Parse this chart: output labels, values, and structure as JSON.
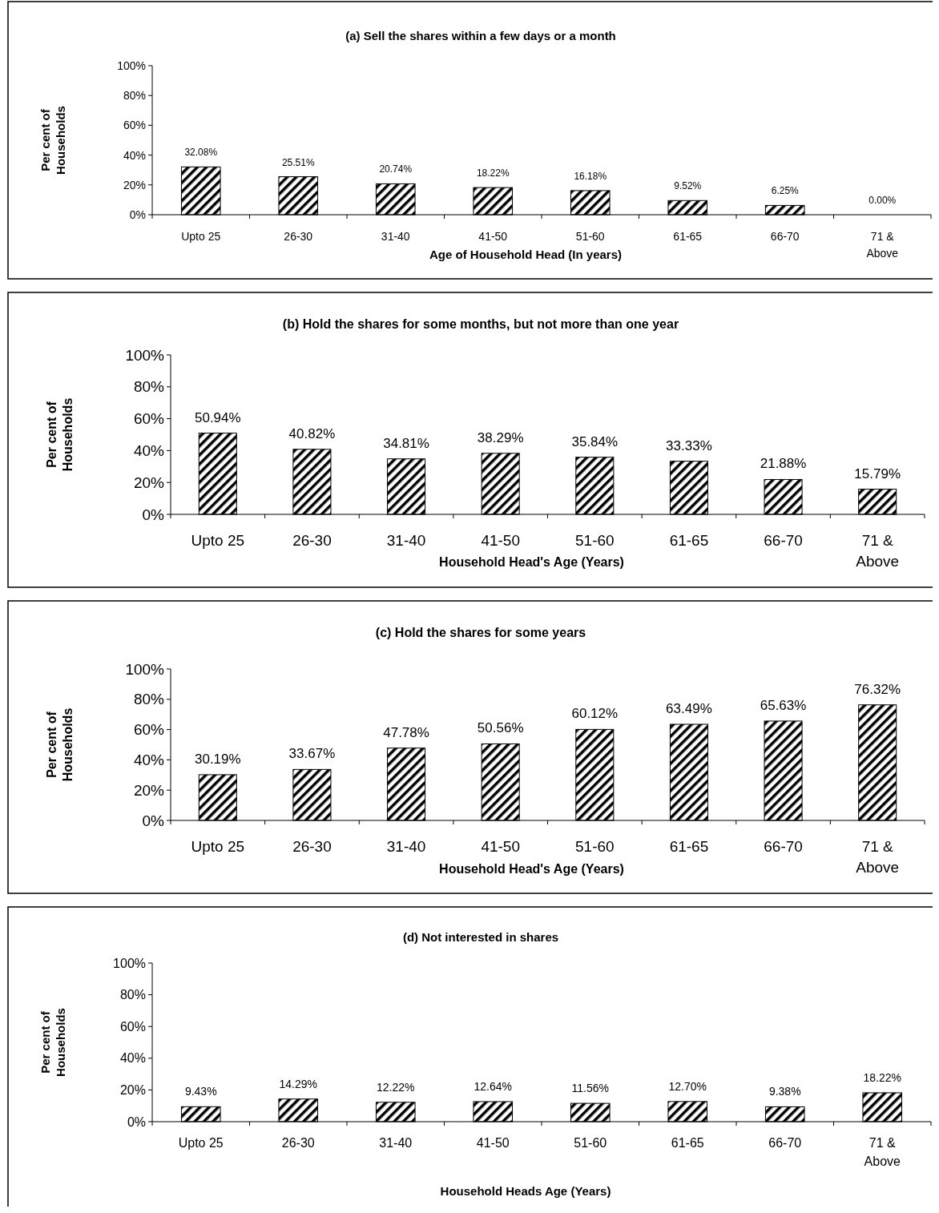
{
  "chart_data": [
    {
      "type": "bar",
      "title": "(a) Sell the shares within a few days or a month",
      "xlabel": "Age of Household Head (In years)",
      "ylabel": "Per cent of\nHouseholds",
      "categories": [
        "Upto 25",
        "26-30",
        "31-40",
        "41-50",
        "51-60",
        "61-65",
        "66-70",
        "71 &\nAbove"
      ],
      "values": [
        32.08,
        25.51,
        20.74,
        18.22,
        16.18,
        9.52,
        6.25,
        0
      ],
      "value_labels": [
        "32.08%",
        "25.51%",
        "20.74%",
        "18.22%",
        "16.18%",
        "9.52%",
        "6.25%",
        "0.00%"
      ],
      "color": "#000000",
      "ylim": [
        0,
        100
      ],
      "yticks": [
        {
          "value": 0,
          "label": "0%"
        },
        {
          "value": 20,
          "label": "20%"
        },
        {
          "value": 40,
          "label": "40%"
        },
        {
          "value": 60,
          "label": "60%"
        },
        {
          "value": 80,
          "label": "80%"
        },
        {
          "value": 100,
          "label": "100%"
        }
      ],
      "grid": false
    },
    {
      "type": "bar",
      "title": "(b) Hold the shares for some months, but not more than one year",
      "xlabel": "Household Head's Age (Years)",
      "ylabel": "Per cent of\nHouseholds",
      "categories": [
        "Upto 25",
        "26-30",
        "31-40",
        "41-50",
        "51-60",
        "61-65",
        "66-70",
        "71 &\nAbove"
      ],
      "values": [
        50.94,
        40.82,
        34.81,
        38.29,
        35.84,
        33.33,
        21.88,
        15.79
      ],
      "value_labels": [
        "50.94%",
        "40.82%",
        "34.81%",
        "38.29%",
        "35.84%",
        "33.33%",
        "21.88%",
        "15.79%"
      ],
      "color": "#000000",
      "ylim": [
        0,
        100
      ],
      "yticks": [
        {
          "value": 0,
          "label": "0%"
        },
        {
          "value": 20,
          "label": "20%"
        },
        {
          "value": 40,
          "label": "40%"
        },
        {
          "value": 60,
          "label": "60%"
        },
        {
          "value": 80,
          "label": "80%"
        },
        {
          "value": 100,
          "label": "100%"
        }
      ],
      "grid": false
    },
    {
      "type": "bar",
      "title": "(c) Hold the shares for some years",
      "xlabel": "Household Head's Age (Years)",
      "ylabel": "Per cent of\nHouseholds",
      "categories": [
        "Upto 25",
        "26-30",
        "31-40",
        "41-50",
        "51-60",
        "61-65",
        "66-70",
        "71 &\nAbove"
      ],
      "values": [
        30.19,
        33.67,
        47.78,
        50.56,
        60.12,
        63.49,
        65.63,
        76.32
      ],
      "value_labels": [
        "30.19%",
        "33.67%",
        "47.78%",
        "50.56%",
        "60.12%",
        "63.49%",
        "65.63%",
        "76.32%"
      ],
      "color": "#000000",
      "ylim": [
        0,
        100
      ],
      "yticks": [
        {
          "value": 0,
          "label": "0%"
        },
        {
          "value": 20,
          "label": "20%"
        },
        {
          "value": 40,
          "label": "40%"
        },
        {
          "value": 60,
          "label": "60%"
        },
        {
          "value": 80,
          "label": "80%"
        },
        {
          "value": 100,
          "label": "100%"
        }
      ],
      "grid": false
    },
    {
      "type": "bar",
      "title": "(d) Not interested in shares",
      "xlabel": "Household Heads Age (Years)",
      "ylabel": "Per cent of\nHouseholds",
      "categories": [
        "Upto 25",
        "26-30",
        "31-40",
        "41-50",
        "51-60",
        "61-65",
        "66-70",
        "71 &\nAbove"
      ],
      "values": [
        9.43,
        14.29,
        12.22,
        12.64,
        11.56,
        12.7,
        9.38,
        18.22
      ],
      "value_labels": [
        "9.43%",
        "14.29%",
        "12.22%",
        "12.64%",
        "11.56%",
        "12.70%",
        "9.38%",
        "18.22%"
      ],
      "color": "#000000",
      "ylim": [
        0,
        100
      ],
      "yticks": [
        {
          "value": 0,
          "label": "0%"
        },
        {
          "value": 20,
          "label": "20%"
        },
        {
          "value": 40,
          "label": "40%"
        },
        {
          "value": 60,
          "label": "60%"
        },
        {
          "value": 80,
          "label": "80%"
        },
        {
          "value": 100,
          "label": "100%"
        }
      ],
      "grid": false
    }
  ]
}
